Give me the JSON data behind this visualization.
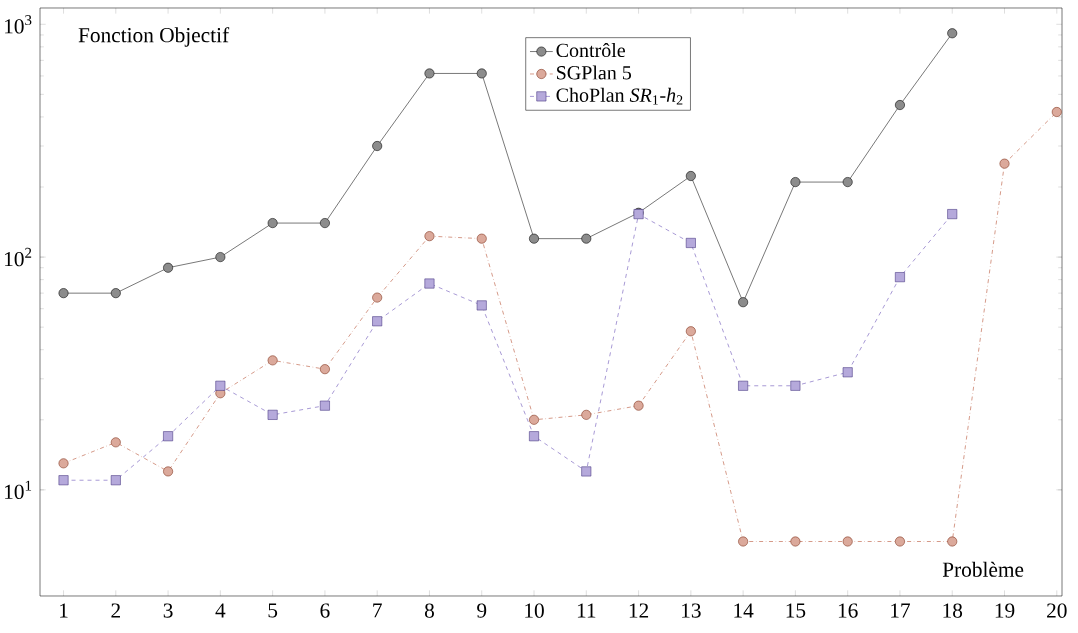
{
  "chart_data": {
    "type": "line",
    "xlabel": "Problème",
    "ylabel": "Fonction Objectif",
    "log": "y",
    "legend": "top",
    "x": [
      1,
      2,
      3,
      4,
      5,
      6,
      7,
      8,
      9,
      10,
      11,
      12,
      13,
      14,
      15,
      16,
      17,
      18,
      19,
      20
    ],
    "xlim": [
      0.55,
      20.1
    ],
    "ylim": [
      3.5,
      1175
    ],
    "xticks": [
      1,
      2,
      3,
      4,
      5,
      6,
      7,
      8,
      9,
      10,
      11,
      12,
      13,
      14,
      15,
      16,
      17,
      18,
      19,
      20
    ],
    "yticks": [
      {
        "value": 10,
        "label": "10$^{1}$"
      },
      {
        "value": 100,
        "label": "10$^{2}$"
      },
      {
        "value": 1000,
        "label": "10$^{3}$"
      }
    ],
    "series": [
      {
        "name": "Contrôle",
        "color": "#000000",
        "marker": "circle",
        "line_style": "solid",
        "values": [
          70,
          70,
          90,
          100,
          140,
          140,
          300,
          615,
          615,
          120,
          120,
          155,
          223,
          64,
          210,
          210,
          450,
          915,
          null,
          null
        ]
      },
      {
        "name": "SGPlan 5",
        "color": "#b04020",
        "marker": "circle",
        "line_style": "dashdot",
        "values": [
          13,
          16,
          12,
          26,
          36,
          33,
          67,
          123,
          120,
          20,
          21,
          23,
          48,
          6,
          6,
          6,
          6,
          6,
          252,
          420
        ]
      },
      {
        "name": "ChoPlan *SR*$_{1}$-*h*$_{2}$",
        "color": "#5a40b0",
        "marker": "square",
        "line_style": "dashed",
        "values": [
          11,
          11,
          17,
          28,
          21,
          23,
          53,
          77,
          62,
          17,
          12,
          153,
          115,
          28,
          28,
          32,
          82,
          153,
          null,
          null
        ]
      }
    ]
  }
}
